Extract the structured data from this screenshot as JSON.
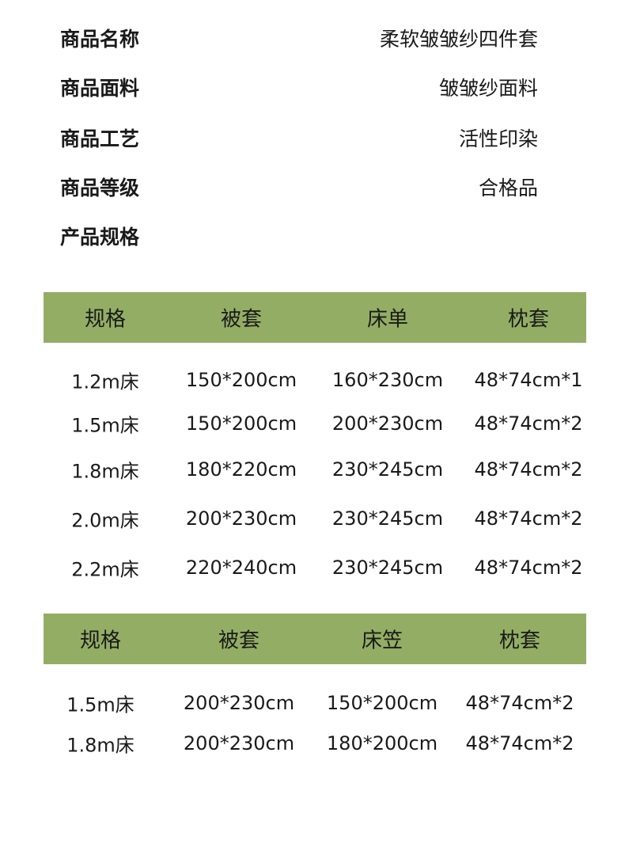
{
  "info": [
    {
      "label": "商品名称",
      "value": "柔软皱皱纱四件套"
    },
    {
      "label": "商品面料",
      "value": "皱皱纱面料"
    },
    {
      "label": "商品工艺",
      "value": "活性印染"
    },
    {
      "label": "商品等级",
      "value": "合格品"
    },
    {
      "label": "产品规格",
      "value": ""
    }
  ],
  "header_color": "#93ae64",
  "table1": {
    "headers": [
      "规格",
      "被套",
      "床单",
      "枕套"
    ],
    "rows": [
      [
        "1.2m床",
        "150*200cm",
        "160*230cm",
        "48*74cm*1"
      ],
      [
        "1.5m床",
        "150*200cm",
        "200*230cm",
        "48*74cm*2"
      ],
      [
        "1.8m床",
        "180*220cm",
        "230*245cm",
        "48*74cm*2"
      ],
      [
        "2.0m床",
        "200*230cm",
        "230*245cm",
        "48*74cm*2"
      ],
      [
        "2.2m床",
        "220*240cm",
        "230*245cm",
        "48*74cm*2"
      ]
    ]
  },
  "table2": {
    "headers": [
      "规格",
      "被套",
      "床笠",
      "枕套"
    ],
    "rows": [
      [
        "1.5m床",
        "200*230cm",
        "150*200cm",
        "48*74cm*2"
      ],
      [
        "1.8m床",
        "200*230cm",
        "180*200cm",
        "48*74cm*2"
      ]
    ]
  }
}
